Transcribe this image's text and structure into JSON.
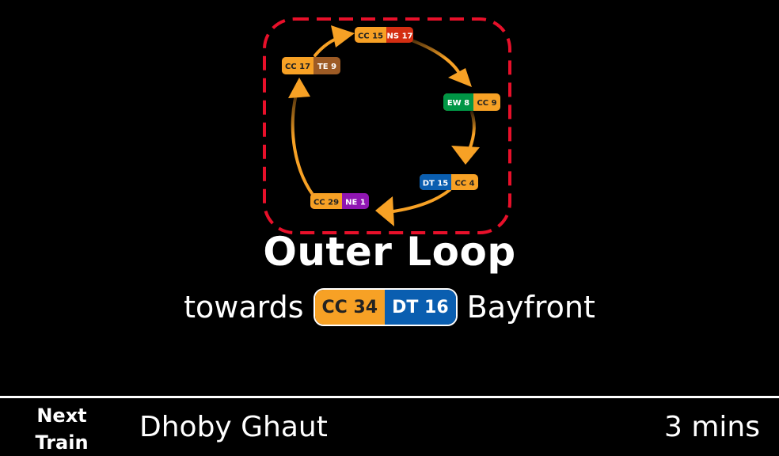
{
  "loop_diagram": {
    "stations": [
      {
        "codes": [
          {
            "line": "CC",
            "code": "CC 15",
            "color": "#f7a125",
            "text_color": "#222222"
          },
          {
            "line": "NS",
            "code": "NS 17",
            "color": "#d42e12",
            "text_color": "#ffffff"
          }
        ]
      },
      {
        "codes": [
          {
            "line": "EW",
            "code": "EW 8",
            "color": "#009645",
            "text_color": "#ffffff"
          },
          {
            "line": "CC",
            "code": "CC 9",
            "color": "#f7a125",
            "text_color": "#222222"
          }
        ]
      },
      {
        "codes": [
          {
            "line": "DT",
            "code": "DT 15",
            "color": "#0a5eb0",
            "text_color": "#ffffff"
          },
          {
            "line": "CC",
            "code": "CC 4",
            "color": "#f7a125",
            "text_color": "#222222"
          }
        ]
      },
      {
        "codes": [
          {
            "line": "CC",
            "code": "CC 29",
            "color": "#f7a125",
            "text_color": "#222222"
          },
          {
            "line": "NE",
            "code": "NE 1",
            "color": "#9016b2",
            "text_color": "#ffffff"
          }
        ]
      },
      {
        "codes": [
          {
            "line": "CC",
            "code": "CC 17",
            "color": "#f7a125",
            "text_color": "#222222"
          },
          {
            "line": "TE",
            "code": "TE 9",
            "color": "#9d5b25",
            "text_color": "#ffffff"
          }
        ]
      }
    ],
    "highlight_color": "#e8102a",
    "arrow_color": "#f7a125"
  },
  "title": "Outer Loop",
  "direction": {
    "prefix": "towards",
    "codes": [
      "CC 34",
      "DT 16"
    ],
    "destination": "Bayfront"
  },
  "next_train": {
    "label_line1": "Next",
    "label_line2": "Train",
    "station": "Dhoby Ghaut",
    "time": "3 mins"
  }
}
